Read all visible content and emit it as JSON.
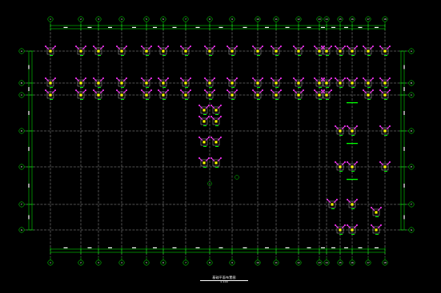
{
  "drawing": {
    "title": "基础平面布置图",
    "subtitle": "1:100",
    "colors": {
      "background": "#000000",
      "grid_line": "#e6e6e6",
      "dimension": "#00ff00",
      "footing": "#ff33ff",
      "column": "#ffff00",
      "tag": "#00ff00",
      "text": "#ffffff"
    },
    "axes_top": [
      "1",
      "2",
      "3",
      "4",
      "5",
      "6",
      "7",
      "8",
      "9",
      "10",
      "11",
      "12",
      "13",
      "14",
      "15",
      "16",
      "17",
      "18"
    ],
    "axes_bottom": [
      "1",
      "2",
      "3",
      "4",
      "5",
      "6",
      "7",
      "8",
      "9",
      "10",
      "11",
      "12",
      "13",
      "14",
      "15",
      "16",
      "17",
      "18"
    ],
    "axes_left": [
      "A",
      "B",
      "C",
      "D",
      "E",
      "F",
      "G"
    ],
    "axes_right": [
      "A",
      "B",
      "C",
      "D",
      "E",
      "F",
      "G"
    ]
  }
}
